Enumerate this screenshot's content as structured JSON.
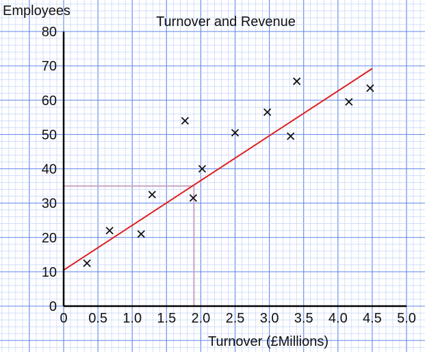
{
  "chart_data": {
    "type": "scatter",
    "title": "Turnover and Revenue",
    "xlabel": "Turnover (£Millions)",
    "ylabel": "Employees",
    "xlim": [
      0,
      5
    ],
    "ylim": [
      0,
      80
    ],
    "grid": true,
    "x_ticks": [
      0,
      0.5,
      1.0,
      1.5,
      2.0,
      2.5,
      3.0,
      3.5,
      4.0,
      4.5,
      5.0
    ],
    "x_tick_labels": [
      "0",
      "0.5",
      "1.0",
      "1.5",
      "2.0",
      "2.5",
      "3.0",
      "3.5",
      "4.0",
      "4.5",
      "5.0"
    ],
    "y_ticks": [
      0,
      10,
      20,
      30,
      40,
      50,
      60,
      70,
      80
    ],
    "y_tick_labels": [
      "0",
      "10",
      "20",
      "30",
      "40",
      "50",
      "60",
      "70",
      "80"
    ],
    "marker": "x",
    "points": [
      {
        "x": 0.34,
        "y": 12.5
      },
      {
        "x": 0.67,
        "y": 22
      },
      {
        "x": 1.13,
        "y": 21
      },
      {
        "x": 1.29,
        "y": 32.5
      },
      {
        "x": 1.77,
        "y": 54
      },
      {
        "x": 1.89,
        "y": 31.5
      },
      {
        "x": 2.02,
        "y": 40
      },
      {
        "x": 2.5,
        "y": 50.5
      },
      {
        "x": 2.97,
        "y": 56.5
      },
      {
        "x": 3.31,
        "y": 49.5
      },
      {
        "x": 3.4,
        "y": 65.5
      },
      {
        "x": 4.16,
        "y": 59.5
      },
      {
        "x": 4.47,
        "y": 63.5
      }
    ],
    "trend_line": {
      "x": [
        0,
        4.5
      ],
      "y": [
        10.5,
        69.2
      ]
    },
    "reference": {
      "x": 1.9,
      "y": 35
    }
  },
  "colors": {
    "grid_minor": "#b9cbf7",
    "grid_major": "#5f86e8",
    "axis": "#000000",
    "trend_line": "#dd1f1f",
    "reference": "#c9a2c4",
    "marker": "#111111"
  }
}
